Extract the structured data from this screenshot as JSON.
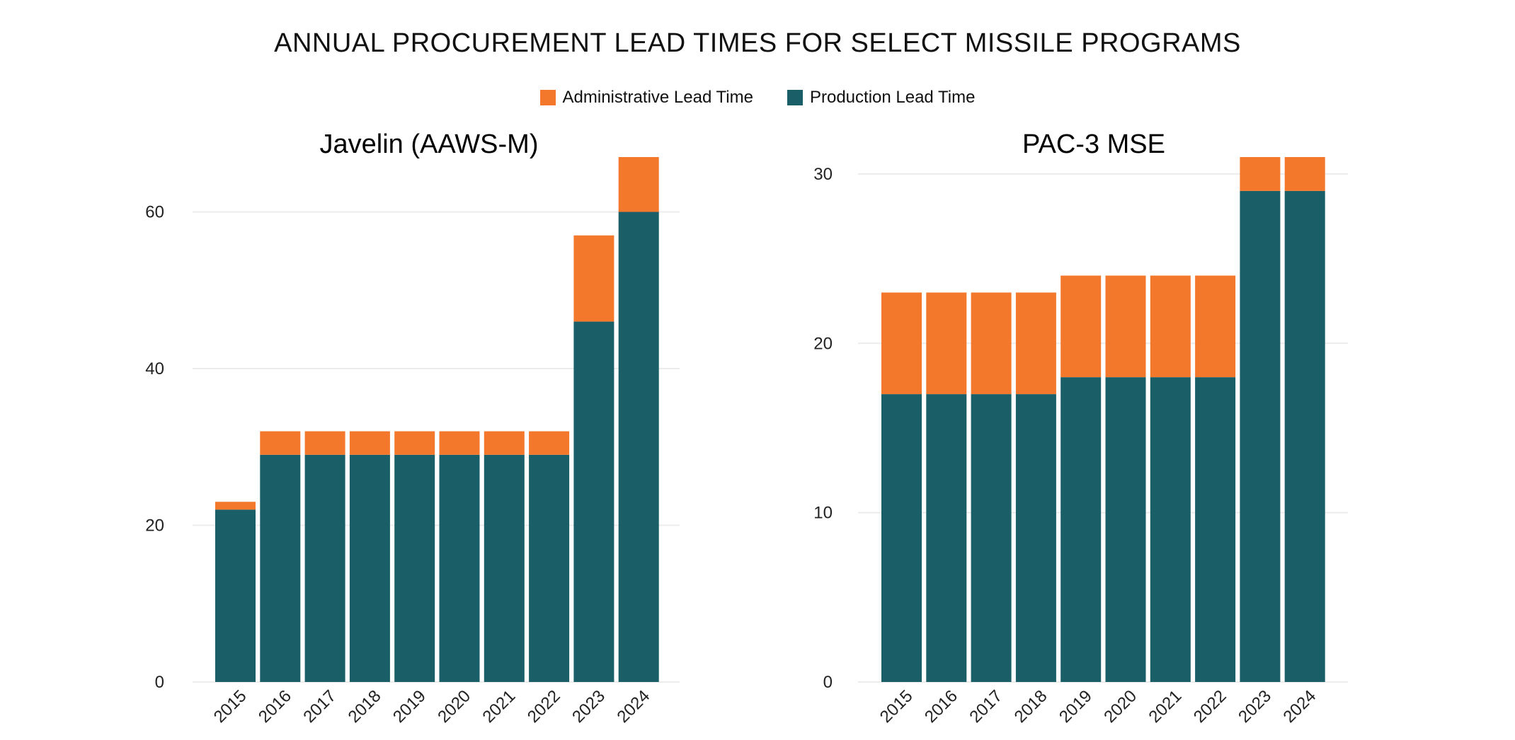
{
  "title": "ANNUAL PROCUREMENT LEAD TIMES FOR SELECT MISSILE PROGRAMS",
  "legend": [
    {
      "label": "Administrative Lead Time",
      "color": "#F4782C"
    },
    {
      "label": "Production Lead Time",
      "color": "#1A5F68"
    }
  ],
  "chart_data": [
    {
      "type": "bar",
      "stacked": true,
      "title": "Javelin (AAWS-M)",
      "categories": [
        "2015",
        "2016",
        "2017",
        "2018",
        "2019",
        "2020",
        "2021",
        "2022",
        "2023",
        "2024"
      ],
      "series": [
        {
          "name": "Production Lead Time",
          "color": "#1A5F68",
          "values": [
            22,
            29,
            29,
            29,
            29,
            29,
            29,
            29,
            46,
            60
          ]
        },
        {
          "name": "Administrative Lead Time",
          "color": "#F4782C",
          "values": [
            1,
            3,
            3,
            3,
            3,
            3,
            3,
            3,
            11,
            7
          ]
        }
      ],
      "ylim": [
        0,
        67
      ],
      "yticks": [
        0,
        20,
        40,
        60
      ],
      "grid": true
    },
    {
      "type": "bar",
      "stacked": true,
      "title": "PAC-3 MSE",
      "categories": [
        "2015",
        "2016",
        "2017",
        "2018",
        "2019",
        "2020",
        "2021",
        "2022",
        "2023",
        "2024"
      ],
      "series": [
        {
          "name": "Production Lead Time",
          "color": "#1A5F68",
          "values": [
            17,
            17,
            17,
            17,
            18,
            18,
            18,
            18,
            29,
            29
          ]
        },
        {
          "name": "Administrative Lead Time",
          "color": "#F4782C",
          "values": [
            6,
            6,
            6,
            6,
            6,
            6,
            6,
            6,
            2,
            2
          ]
        }
      ],
      "ylim": [
        0,
        31
      ],
      "yticks": [
        0,
        10,
        20,
        30
      ],
      "grid": true
    }
  ]
}
